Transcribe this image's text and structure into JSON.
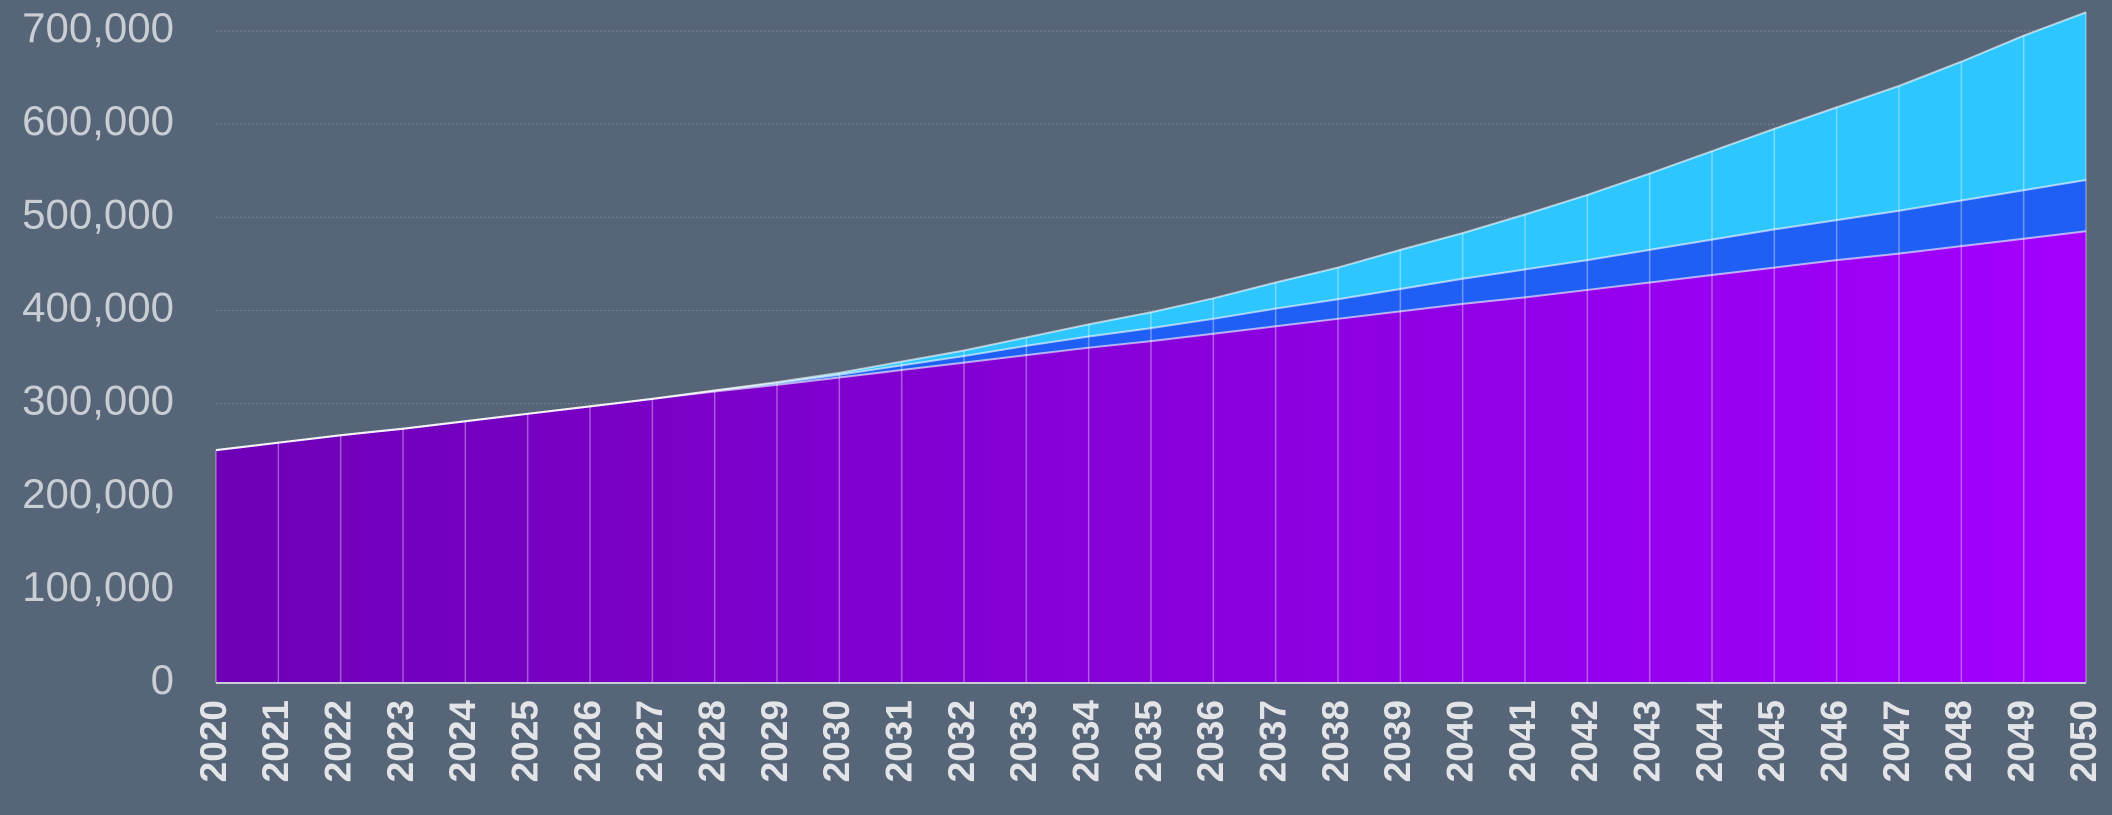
{
  "chart_data": {
    "type": "stacked-area",
    "categories": [
      "2020",
      "2021",
      "2022",
      "2023",
      "2024",
      "2025",
      "2026",
      "2027",
      "2028",
      "2029",
      "2030",
      "2031",
      "2032",
      "2033",
      "2034",
      "2035",
      "2036",
      "2037",
      "2038",
      "2039",
      "2040",
      "2041",
      "2042",
      "2043",
      "2044",
      "2045",
      "2046",
      "2047",
      "2048",
      "2049",
      "2050"
    ],
    "series": [
      {
        "color": "#8a00dc",
        "gradient": [
          "#6e00b6",
          "#a200ff"
        ],
        "values": [
          250000,
          258000,
          266000,
          273000,
          281000,
          289000,
          297000,
          305000,
          313000,
          320000,
          328000,
          336000,
          344000,
          352000,
          360000,
          367000,
          375000,
          383000,
          391000,
          399000,
          407000,
          414000,
          422000,
          430000,
          438000,
          446000,
          454000,
          461000,
          469000,
          477000,
          485000
        ]
      },
      {
        "color": "#1f5ff5",
        "values": [
          0,
          0,
          0,
          0,
          0,
          0,
          0,
          0,
          1000,
          2000,
          3000,
          5000,
          7000,
          10000,
          12000,
          14000,
          16000,
          19000,
          21000,
          24000,
          27000,
          30000,
          32000,
          35000,
          38000,
          41000,
          43000,
          46000,
          49000,
          52000,
          55000
        ]
      },
      {
        "color": "#2ec6ff",
        "values": [
          0,
          0,
          0,
          0,
          0,
          0,
          0,
          0,
          0,
          1000,
          2000,
          4000,
          6000,
          9000,
          13000,
          17000,
          22000,
          28000,
          34000,
          42000,
          49000,
          59000,
          70000,
          82000,
          95000,
          108000,
          121000,
          134000,
          149000,
          166000,
          180000
        ]
      }
    ],
    "ylim": [
      0,
      700000
    ],
    "yticks": [
      0,
      {
        "value": 100000,
        "label": "100,000"
      },
      {
        "value": 200000,
        "label": "200,000"
      },
      {
        "value": 300000,
        "label": "300,000"
      },
      {
        "value": 400000,
        "label": "400,000"
      },
      {
        "value": 500000,
        "label": "500,000"
      },
      {
        "value": 600000,
        "label": "600,000"
      },
      {
        "value": 700000,
        "label": "700,000"
      }
    ],
    "grid": true
  }
}
